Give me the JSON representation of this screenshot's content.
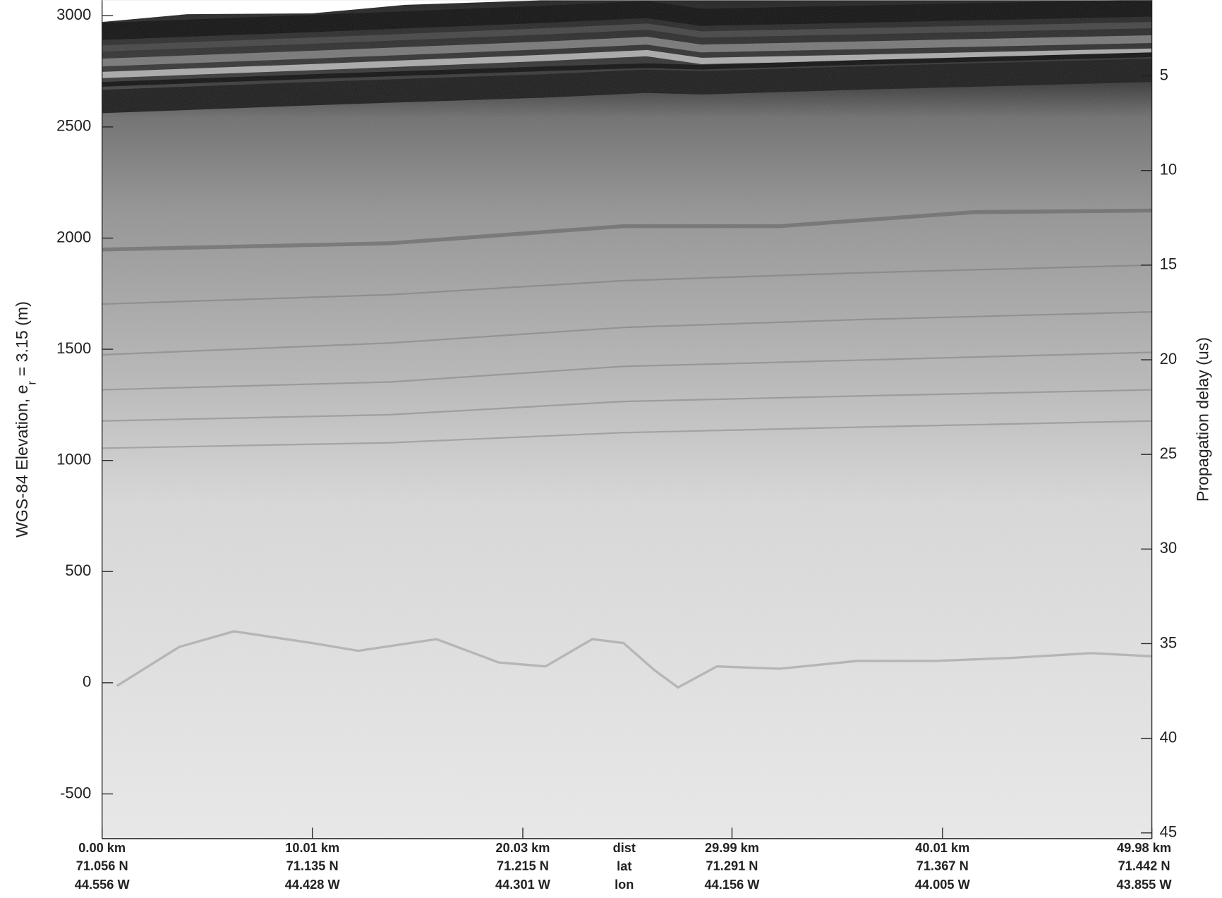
{
  "chart_data": {
    "type": "radargram",
    "ylabel": "WGS-84 Elevation, e",
    "ylabel_subscript": "r",
    "ylabel_suffix": "= 3.15 (m)",
    "y2label": "Propagation delay (us)",
    "ylim": [
      -701,
      3070
    ],
    "yticks": [
      -500,
      0,
      500,
      1000,
      1500,
      2000,
      2500,
      3000
    ],
    "y2lim": [
      45.3,
      1.0
    ],
    "y2ticks": [
      5,
      10,
      15,
      20,
      25,
      30,
      35,
      40,
      45
    ],
    "xlim": [
      0,
      49.98
    ],
    "xticks": [
      {
        "value": 0,
        "label": "0.00 km"
      },
      {
        "value": 10.01,
        "label": "10.01 km"
      },
      {
        "value": 20.03,
        "label": "20.03 km"
      },
      {
        "value": 29.99,
        "label": "29.99 km"
      },
      {
        "value": 40.01,
        "label": "40.01 km"
      },
      {
        "value": 49.98,
        "label": "49.98 km"
      }
    ],
    "lat_labels": [
      "71.056 N",
      "71.135 N",
      "71.215 N",
      "71.291 N",
      "71.367 N",
      "71.442 N"
    ],
    "lon_labels": [
      "44.556 W",
      "44.428 W",
      "44.301 W",
      "44.156 W",
      "44.005 W",
      "43.855 W"
    ],
    "row_labels": [
      "dist",
      "lat",
      "lon"
    ]
  }
}
